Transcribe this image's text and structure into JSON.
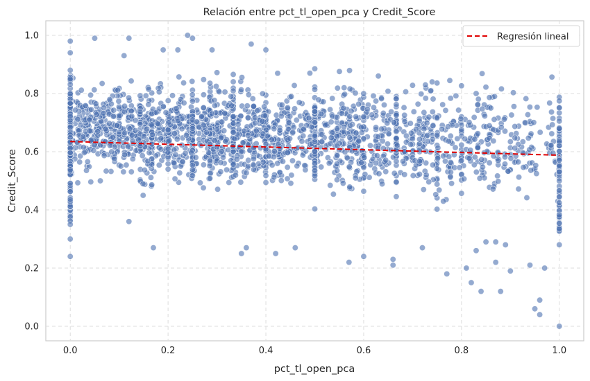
{
  "chart_data": {
    "type": "scatter",
    "title": "Relación entre pct_tl_open_pca y Credit_Score",
    "xlabel": "pct_tl_open_pca",
    "ylabel": "Credit_Score",
    "xlim": [
      -0.05,
      1.05
    ],
    "ylim": [
      -0.05,
      1.05
    ],
    "xticks": [
      "0.0",
      "0.2",
      "0.4",
      "0.6",
      "0.8",
      "1.0"
    ],
    "yticks": [
      "0.0",
      "0.2",
      "0.4",
      "0.6",
      "0.8",
      "1.0"
    ],
    "grid": true,
    "legend": {
      "position": "top-right",
      "entries": [
        "Regresión lineal"
      ]
    },
    "colors": {
      "points": "#4c72b0",
      "regression": "#e00000",
      "grid": "#dcdcdc",
      "frame": "#cccccc"
    },
    "series": [
      {
        "kind": "points",
        "points": [
          [
            0.0,
            0.98
          ],
          [
            0.0,
            0.94
          ],
          [
            0.0,
            0.24
          ],
          [
            0.0,
            0.3
          ],
          [
            0.0,
            0.35
          ],
          [
            0.0,
            0.88
          ],
          [
            0.05,
            0.99
          ],
          [
            0.12,
            0.99
          ],
          [
            0.24,
            1.0
          ],
          [
            0.25,
            0.99
          ],
          [
            0.11,
            0.93
          ],
          [
            0.17,
            0.27
          ],
          [
            0.12,
            0.36
          ],
          [
            0.36,
            0.27
          ],
          [
            0.35,
            0.25
          ],
          [
            0.42,
            0.25
          ],
          [
            0.46,
            0.27
          ],
          [
            0.57,
            0.22
          ],
          [
            0.6,
            0.24
          ],
          [
            0.66,
            0.23
          ],
          [
            0.66,
            0.21
          ],
          [
            0.72,
            0.27
          ],
          [
            0.77,
            0.18
          ],
          [
            0.81,
            0.2
          ],
          [
            0.82,
            0.15
          ],
          [
            0.84,
            0.12
          ],
          [
            0.83,
            0.26
          ],
          [
            0.85,
            0.29
          ],
          [
            0.87,
            0.29
          ],
          [
            0.88,
            0.12
          ],
          [
            0.87,
            0.22
          ],
          [
            0.89,
            0.28
          ],
          [
            0.9,
            0.19
          ],
          [
            0.94,
            0.21
          ],
          [
            0.95,
            0.06
          ],
          [
            0.96,
            0.09
          ],
          [
            0.96,
            0.04
          ],
          [
            0.97,
            0.2
          ],
          [
            1.0,
            0.0
          ],
          [
            1.0,
            0.28
          ],
          [
            1.0,
            0.68
          ],
          [
            0.93,
            0.7
          ],
          [
            0.83,
            0.8
          ],
          [
            0.86,
            0.75
          ],
          [
            0.74,
            0.84
          ],
          [
            0.63,
            0.86
          ],
          [
            0.56,
            0.82
          ],
          [
            0.49,
            0.87
          ],
          [
            0.37,
            0.97
          ],
          [
            0.4,
            0.95
          ],
          [
            0.19,
            0.95
          ],
          [
            0.22,
            0.95
          ],
          [
            0.29,
            0.95
          ]
        ]
      },
      {
        "kind": "regression",
        "name": "Regresión lineal",
        "x": [
          0.0,
          1.0
        ],
        "y": [
          0.635,
          0.588
        ]
      }
    ]
  }
}
